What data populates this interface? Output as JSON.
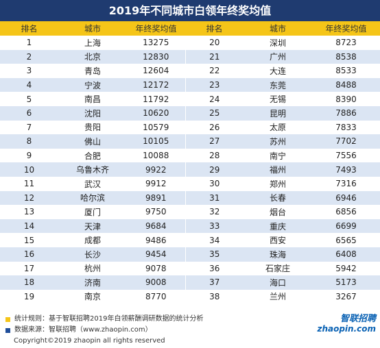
{
  "title": "2019年不同城市白领年终奖均值",
  "table": {
    "header": [
      "排名",
      "城市",
      "年终奖均值",
      "排名",
      "城市",
      "年终奖均值"
    ],
    "rows": [
      [
        1,
        "上海",
        13275,
        20,
        "深圳",
        8723
      ],
      [
        2,
        "北京",
        12830,
        21,
        "广州",
        8538
      ],
      [
        3,
        "青岛",
        12604,
        22,
        "大连",
        8533
      ],
      [
        4,
        "宁波",
        12172,
        23,
        "东莞",
        8488
      ],
      [
        5,
        "南昌",
        11792,
        24,
        "无锡",
        8390
      ],
      [
        6,
        "沈阳",
        10620,
        25,
        "昆明",
        7886
      ],
      [
        7,
        "贵阳",
        10579,
        26,
        "太原",
        7833
      ],
      [
        8,
        "佛山",
        10105,
        27,
        "苏州",
        7702
      ],
      [
        9,
        "合肥",
        10088,
        28,
        "南宁",
        7556
      ],
      [
        10,
        "乌鲁木齐",
        9922,
        29,
        "福州",
        7493
      ],
      [
        11,
        "武汉",
        9912,
        30,
        "郑州",
        7316
      ],
      [
        12,
        "哈尔滨",
        9891,
        31,
        "长春",
        6946
      ],
      [
        13,
        "厦门",
        9750,
        32,
        "烟台",
        6856
      ],
      [
        14,
        "天津",
        9684,
        33,
        "重庆",
        6699
      ],
      [
        15,
        "成都",
        9486,
        34,
        "西安",
        6565
      ],
      [
        16,
        "长沙",
        9454,
        35,
        "珠海",
        6408
      ],
      [
        17,
        "杭州",
        9078,
        36,
        "石家庄",
        5942
      ],
      [
        18,
        "济南",
        9008,
        37,
        "海口",
        5173
      ],
      [
        19,
        "南京",
        8770,
        38,
        "兰州",
        3267
      ]
    ]
  },
  "footer": {
    "notes": [
      "统计规则：基于智联招聘2019年白领薪酬调研数据的统计分析",
      "数据来源：智联招聘（www.zhaopin.com）"
    ],
    "copyright": "Copyright©2019 zhaopin all rights reserved",
    "logo": [
      "智联招聘",
      "zhaopin.com"
    ]
  }
}
